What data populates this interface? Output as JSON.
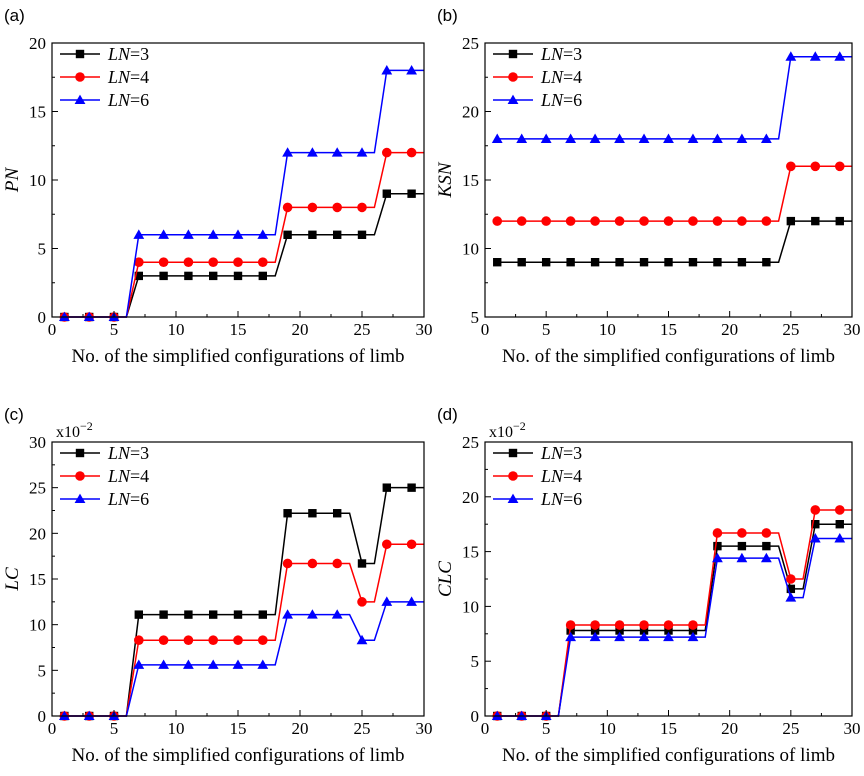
{
  "chart_data": [
    {
      "panel": "(a)",
      "type": "line",
      "xlabel": "No. of the simplified configurations of limb",
      "ylabel": "PN",
      "xlim": [
        0,
        30
      ],
      "ylim": [
        0,
        20
      ],
      "xticks": [
        0,
        5,
        10,
        15,
        20,
        25,
        30
      ],
      "yticks": [
        0,
        5,
        10,
        15,
        20
      ],
      "exponent_label": "",
      "legend_position": "top-left",
      "x": [
        1,
        3,
        5,
        7,
        9,
        11,
        13,
        15,
        17,
        19,
        21,
        23,
        25,
        27,
        29
      ],
      "series": [
        {
          "name": "LN=3",
          "legend": {
            "var": "LN",
            "val": "=3"
          },
          "color": "#000000",
          "marker": "square",
          "steps": [
            [
              1,
              0
            ],
            [
              6,
              0
            ],
            [
              7,
              3
            ],
            [
              18,
              3
            ],
            [
              19,
              6
            ],
            [
              26,
              6
            ],
            [
              27,
              9
            ],
            [
              30,
              9
            ]
          ],
          "values": [
            0,
            0,
            0,
            3,
            3,
            3,
            3,
            3,
            3,
            6,
            6,
            6,
            6,
            9,
            9
          ]
        },
        {
          "name": "LN=4",
          "legend": {
            "var": "LN",
            "val": "=4"
          },
          "color": "#ff0000",
          "marker": "circle",
          "steps": [
            [
              1,
              0
            ],
            [
              6,
              0
            ],
            [
              7,
              4
            ],
            [
              18,
              4
            ],
            [
              19,
              8
            ],
            [
              26,
              8
            ],
            [
              27,
              12
            ],
            [
              30,
              12
            ]
          ],
          "values": [
            0,
            0,
            0,
            4,
            4,
            4,
            4,
            4,
            4,
            8,
            8,
            8,
            8,
            12,
            12
          ]
        },
        {
          "name": "LN=6",
          "legend": {
            "var": "LN",
            "val": "=6"
          },
          "color": "#0000ff",
          "marker": "triangle",
          "steps": [
            [
              1,
              0
            ],
            [
              6,
              0
            ],
            [
              7,
              6
            ],
            [
              18,
              6
            ],
            [
              19,
              12
            ],
            [
              26,
              12
            ],
            [
              27,
              18
            ],
            [
              30,
              18
            ]
          ],
          "values": [
            0,
            0,
            0,
            6,
            6,
            6,
            6,
            6,
            6,
            12,
            12,
            12,
            12,
            18,
            18
          ]
        }
      ]
    },
    {
      "panel": "(b)",
      "type": "line",
      "xlabel": "No. of the simplified configurations of limb",
      "ylabel": "KSN",
      "xlim": [
        0,
        30
      ],
      "ylim": [
        5,
        25
      ],
      "xticks": [
        0,
        5,
        10,
        15,
        20,
        25,
        30
      ],
      "yticks": [
        5,
        10,
        15,
        20,
        25
      ],
      "exponent_label": "",
      "legend_position": "top-left",
      "x": [
        1,
        3,
        5,
        7,
        9,
        11,
        13,
        15,
        17,
        19,
        21,
        23,
        25,
        27,
        29
      ],
      "series": [
        {
          "name": "LN=3",
          "legend": {
            "var": "LN",
            "val": "=3"
          },
          "color": "#000000",
          "marker": "square",
          "steps": [
            [
              1,
              9
            ],
            [
              24,
              9
            ],
            [
              25,
              12
            ],
            [
              30,
              12
            ]
          ],
          "values": [
            9,
            9,
            9,
            9,
            9,
            9,
            9,
            9,
            9,
            9,
            9,
            9,
            12,
            12,
            12
          ]
        },
        {
          "name": "LN=4",
          "legend": {
            "var": "LN",
            "val": "=4"
          },
          "color": "#ff0000",
          "marker": "circle",
          "steps": [
            [
              1,
              12
            ],
            [
              24,
              12
            ],
            [
              25,
              16
            ],
            [
              30,
              16
            ]
          ],
          "values": [
            12,
            12,
            12,
            12,
            12,
            12,
            12,
            12,
            12,
            12,
            12,
            12,
            16,
            16,
            16
          ]
        },
        {
          "name": "LN=6",
          "legend": {
            "var": "LN",
            "val": "=6"
          },
          "color": "#0000ff",
          "marker": "triangle",
          "steps": [
            [
              1,
              18
            ],
            [
              24,
              18
            ],
            [
              25,
              24
            ],
            [
              30,
              24
            ]
          ],
          "values": [
            18,
            18,
            18,
            18,
            18,
            18,
            18,
            18,
            18,
            18,
            18,
            18,
            24,
            24,
            24
          ]
        }
      ]
    },
    {
      "panel": "(c)",
      "type": "line",
      "xlabel": "No. of the simplified configurations of limb",
      "ylabel": "LC",
      "xlim": [
        0,
        30
      ],
      "ylim": [
        0,
        30
      ],
      "xticks": [
        0,
        5,
        10,
        15,
        20,
        25,
        30
      ],
      "yticks": [
        0,
        5,
        10,
        15,
        20,
        25,
        30
      ],
      "exponent_label": {
        "base": "x10",
        "exp": "−2"
      },
      "legend_position": "top-left",
      "x": [
        1,
        3,
        5,
        7,
        9,
        11,
        13,
        15,
        17,
        19,
        21,
        23,
        25,
        27,
        29
      ],
      "series": [
        {
          "name": "LN=3",
          "legend": {
            "var": "LN",
            "val": "=3"
          },
          "color": "#000000",
          "marker": "square",
          "steps": [
            [
              1,
              0
            ],
            [
              6,
              0
            ],
            [
              7,
              11.1
            ],
            [
              18,
              11.1
            ],
            [
              19,
              22.2
            ],
            [
              24,
              22.2
            ],
            [
              25,
              16.7
            ],
            [
              26,
              16.7
            ],
            [
              27,
              25
            ],
            [
              30,
              25
            ]
          ],
          "values": [
            0,
            0,
            0,
            11.1,
            11.1,
            11.1,
            11.1,
            11.1,
            11.1,
            22.2,
            22.2,
            22.2,
            16.7,
            25,
            25
          ]
        },
        {
          "name": "LN=4",
          "legend": {
            "var": "LN",
            "val": "=4"
          },
          "color": "#ff0000",
          "marker": "circle",
          "steps": [
            [
              1,
              0
            ],
            [
              6,
              0
            ],
            [
              7,
              8.3
            ],
            [
              18,
              8.3
            ],
            [
              19,
              16.7
            ],
            [
              24,
              16.7
            ],
            [
              25,
              12.5
            ],
            [
              26,
              12.5
            ],
            [
              27,
              18.8
            ],
            [
              30,
              18.8
            ]
          ],
          "values": [
            0,
            0,
            0,
            8.3,
            8.3,
            8.3,
            8.3,
            8.3,
            8.3,
            16.7,
            16.7,
            16.7,
            12.5,
            18.8,
            18.8
          ]
        },
        {
          "name": "LN=6",
          "legend": {
            "var": "LN",
            "val": "=6"
          },
          "color": "#0000ff",
          "marker": "triangle",
          "steps": [
            [
              1,
              0
            ],
            [
              6,
              0
            ],
            [
              7,
              5.6
            ],
            [
              18,
              5.6
            ],
            [
              19,
              11.1
            ],
            [
              24,
              11.1
            ],
            [
              25,
              8.3
            ],
            [
              26,
              8.3
            ],
            [
              27,
              12.5
            ],
            [
              30,
              12.5
            ]
          ],
          "values": [
            0,
            0,
            0,
            5.6,
            5.6,
            5.6,
            5.6,
            5.6,
            5.6,
            11.1,
            11.1,
            11.1,
            8.3,
            12.5,
            12.5
          ]
        }
      ]
    },
    {
      "panel": "(d)",
      "type": "line",
      "xlabel": "No. of the simplified configurations of limb",
      "ylabel": "CLC",
      "xlim": [
        0,
        30
      ],
      "ylim": [
        0,
        25
      ],
      "xticks": [
        0,
        5,
        10,
        15,
        20,
        25,
        30
      ],
      "yticks": [
        0,
        5,
        10,
        15,
        20,
        25
      ],
      "exponent_label": {
        "base": "x10",
        "exp": "−2"
      },
      "legend_position": "top-left",
      "x": [
        1,
        3,
        5,
        7,
        9,
        11,
        13,
        15,
        17,
        19,
        21,
        23,
        25,
        27,
        29
      ],
      "series": [
        {
          "name": "LN=3",
          "legend": {
            "var": "LN",
            "val": "=3"
          },
          "color": "#000000",
          "marker": "square",
          "steps": [
            [
              1,
              0
            ],
            [
              6,
              0
            ],
            [
              7,
              7.8
            ],
            [
              18,
              7.8
            ],
            [
              19,
              15.5
            ],
            [
              24,
              15.5
            ],
            [
              25,
              11.6
            ],
            [
              26,
              11.6
            ],
            [
              27,
              17.5
            ],
            [
              30,
              17.5
            ]
          ],
          "values": [
            0,
            0,
            0,
            7.8,
            7.8,
            7.8,
            7.8,
            7.8,
            7.8,
            15.5,
            15.5,
            15.5,
            11.6,
            17.5,
            17.5
          ]
        },
        {
          "name": "LN=4",
          "legend": {
            "var": "LN",
            "val": "=4"
          },
          "color": "#ff0000",
          "marker": "circle",
          "steps": [
            [
              1,
              0
            ],
            [
              6,
              0
            ],
            [
              7,
              8.3
            ],
            [
              18,
              8.3
            ],
            [
              19,
              16.7
            ],
            [
              24,
              16.7
            ],
            [
              25,
              12.5
            ],
            [
              26,
              12.5
            ],
            [
              27,
              18.8
            ],
            [
              30,
              18.8
            ]
          ],
          "values": [
            0,
            0,
            0,
            8.3,
            8.3,
            8.3,
            8.3,
            8.3,
            8.3,
            16.7,
            16.7,
            16.7,
            12.5,
            18.8,
            18.8
          ]
        },
        {
          "name": "LN=6",
          "legend": {
            "var": "LN",
            "val": "=6"
          },
          "color": "#0000ff",
          "marker": "triangle",
          "steps": [
            [
              1,
              0
            ],
            [
              6,
              0
            ],
            [
              7,
              7.2
            ],
            [
              18,
              7.2
            ],
            [
              19,
              14.4
            ],
            [
              24,
              14.4
            ],
            [
              25,
              10.8
            ],
            [
              26,
              10.8
            ],
            [
              27,
              16.2
            ],
            [
              30,
              16.2
            ]
          ],
          "values": [
            0,
            0,
            0,
            7.2,
            7.2,
            7.2,
            7.2,
            7.2,
            7.2,
            14.4,
            14.4,
            14.4,
            10.8,
            16.2,
            16.2
          ]
        }
      ]
    }
  ]
}
